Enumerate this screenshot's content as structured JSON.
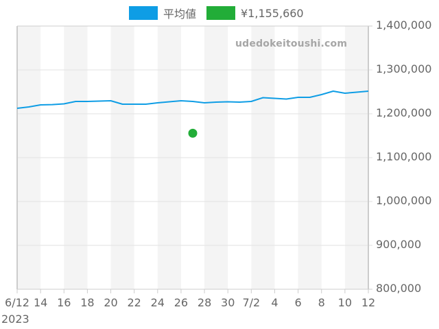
{
  "legend": {
    "items": [
      {
        "label": "平均値",
        "color": "#0e9de5"
      },
      {
        "label": "¥1,155,660",
        "color": "#22ad38"
      }
    ]
  },
  "watermark": "udedokeitoushi.com",
  "axes": {
    "y_ticks": [
      "1,400,000",
      "1,300,000",
      "1,200,000",
      "1,100,000",
      "1,000,000",
      "900,000",
      "800,000"
    ],
    "x_ticks": [
      "6/12",
      "14",
      "16",
      "18",
      "20",
      "22",
      "24",
      "26",
      "28",
      "30",
      "7/2",
      "4",
      "6",
      "8",
      "10",
      "12"
    ],
    "year_label": "2023"
  },
  "colors": {
    "line": "#0e9de5",
    "point": "#22ad38",
    "band": "#f4f4f4",
    "grid": "#e2e2e2",
    "axis": "#cccccc",
    "text": "#666666"
  },
  "chart_data": {
    "type": "line",
    "title": "",
    "xlabel": "",
    "ylabel": "",
    "ylim": [
      800000,
      1400000
    ],
    "y_ticks": [
      800000,
      900000,
      1000000,
      1100000,
      1200000,
      1300000,
      1400000
    ],
    "x_tick_labels": [
      "6/12",
      "14",
      "16",
      "18",
      "20",
      "22",
      "24",
      "26",
      "28",
      "30",
      "7/2",
      "4",
      "6",
      "8",
      "10",
      "12"
    ],
    "x": [
      "2023-06-12",
      "2023-06-13",
      "2023-06-14",
      "2023-06-15",
      "2023-06-16",
      "2023-06-17",
      "2023-06-18",
      "2023-06-19",
      "2023-06-20",
      "2023-06-21",
      "2023-06-22",
      "2023-06-23",
      "2023-06-24",
      "2023-06-25",
      "2023-06-26",
      "2023-06-27",
      "2023-06-28",
      "2023-06-29",
      "2023-06-30",
      "2023-07-01",
      "2023-07-02",
      "2023-07-03",
      "2023-07-04",
      "2023-07-05",
      "2023-07-06",
      "2023-07-07",
      "2023-07-08",
      "2023-07-09",
      "2023-07-10",
      "2023-07-11",
      "2023-07-12"
    ],
    "series": [
      {
        "name": "平均値",
        "type": "line",
        "color": "#0e9de5",
        "values": [
          1212500,
          1215600,
          1220300,
          1221000,
          1222600,
          1228100,
          1228100,
          1228900,
          1229700,
          1221900,
          1221900,
          1221900,
          1225000,
          1227300,
          1229700,
          1228100,
          1225000,
          1226600,
          1227300,
          1226600,
          1228100,
          1236700,
          1235200,
          1233600,
          1237500,
          1237500,
          1243800,
          1251600,
          1246900,
          1249200,
          1251600
        ]
      },
      {
        "name": "¥1,155,660",
        "type": "scatter",
        "color": "#22ad38",
        "points": [
          {
            "x": "2023-06-27",
            "y": 1155660
          }
        ]
      }
    ],
    "legend_position": "top",
    "grid": true,
    "alternating_bands": true,
    "y_axis_side": "right",
    "watermark": "udedokeitoushi.com"
  }
}
